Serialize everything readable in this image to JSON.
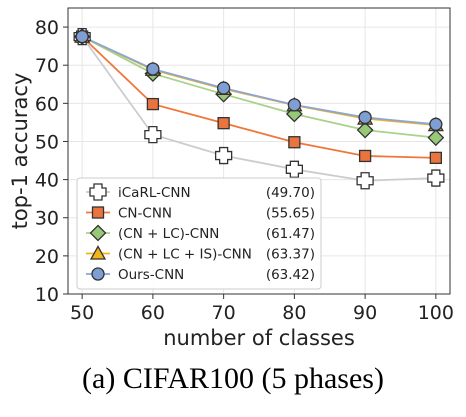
{
  "caption": "(a)  CIFAR100 (5 phases)",
  "chart_data": {
    "type": "line",
    "xlabel": "number of classes",
    "ylabel": "top-1 accuracy",
    "x": [
      50,
      60,
      70,
      80,
      90,
      100
    ],
    "xlim": [
      48,
      102
    ],
    "ylim": [
      10,
      85
    ],
    "xticks": [
      "50",
      "60",
      "70",
      "80",
      "90",
      "100"
    ],
    "yticks": [
      "10",
      "20",
      "30",
      "40",
      "50",
      "60",
      "70",
      "80"
    ],
    "legend_position": "bottom-left",
    "grid": true,
    "series": [
      {
        "name": "iCaRL-CNN",
        "score": "(49.70)",
        "color": "#cccccc",
        "marker": "plus-icon",
        "marker_fill": "#ffffff",
        "values": [
          77.5,
          51.8,
          46.3,
          42.7,
          39.7,
          40.4
        ]
      },
      {
        "name": "CN-CNN",
        "score": "(55.65)",
        "color": "#f0763a",
        "marker": "square-icon",
        "marker_fill": "#e9743e",
        "values": [
          77.5,
          59.8,
          54.8,
          49.8,
          46.2,
          45.7
        ]
      },
      {
        "name": "(CN + LC)-CNN",
        "score": "(61.47)",
        "color": "#a8d28c",
        "marker": "diamond-icon",
        "marker_fill": "#97c878",
        "values": [
          77.5,
          67.8,
          62.4,
          57.2,
          53.0,
          51.0
        ]
      },
      {
        "name": "(CN + LC + IS)-CNN",
        "score": "(63.37)",
        "color": "#f0b41a",
        "marker": "triangle-icon",
        "marker_fill": "#f1b51b",
        "values": [
          77.5,
          68.8,
          63.8,
          59.5,
          56.0,
          54.3
        ]
      },
      {
        "name": "Ours-CNN",
        "score": "(63.42)",
        "color": "#8aa6d6",
        "marker": "circle-icon",
        "marker_fill": "#7f9fd4",
        "values": [
          77.5,
          69.0,
          64.0,
          59.6,
          56.3,
          54.5
        ]
      }
    ]
  }
}
